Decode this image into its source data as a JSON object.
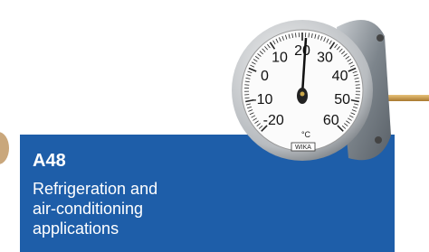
{
  "card": {
    "code": "A48",
    "description_lines": [
      "Refrigeration and",
      "air-conditioning",
      "applications"
    ]
  },
  "dial": {
    "labels": [
      "-20",
      "-10",
      "0",
      "10",
      "20",
      "30",
      "40",
      "50",
      "60"
    ],
    "unit": "°C",
    "brand": "WIKA"
  }
}
